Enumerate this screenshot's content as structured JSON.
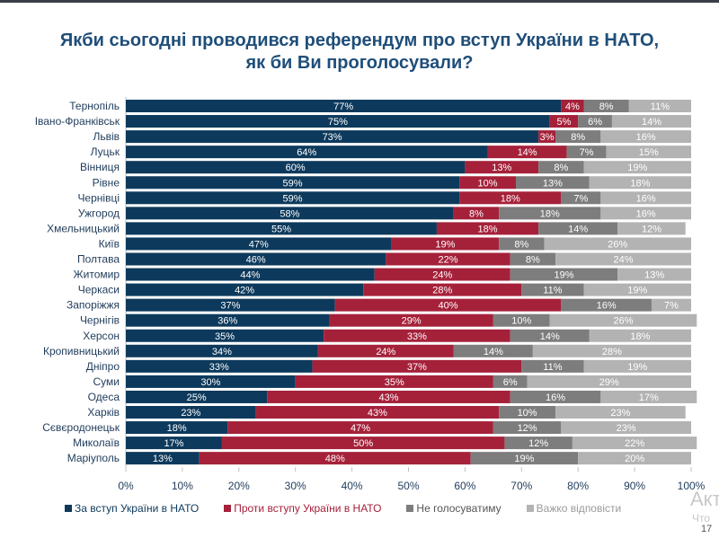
{
  "title_lines": [
    "Якби сьогодні проводився референдум про вступ України в НАТО,",
    "як би Ви проголосували?"
  ],
  "page_number": "17",
  "watermark": [
    "Акт",
    "Что"
  ],
  "chart_data": {
    "type": "bar",
    "orientation": "horizontal",
    "stacked": true,
    "title": "Якби сьогодні проводився референдум про вступ України в НАТО, як би Ви проголосували?",
    "categories": [
      "Тернопіль",
      "Івано-Франківськ",
      "Львів",
      "Луцьк",
      "Вінниця",
      "Рівне",
      "Чернівці",
      "Ужгород",
      "Хмельницький",
      "Київ",
      "Полтава",
      "Житомир",
      "Черкаси",
      "Запоріжжя",
      "Чернігів",
      "Херсон",
      "Кропивницький",
      "Дніпро",
      "Суми",
      "Одеса",
      "Харків",
      "Сєвєродонецьк",
      "Миколаїв",
      "Маріуполь"
    ],
    "series": [
      {
        "name": "За вступ України в НАТО",
        "color": "#0d3a5c",
        "text_color": "#ffffff",
        "values": [
          77,
          75,
          73,
          64,
          60,
          59,
          59,
          58,
          55,
          47,
          46,
          44,
          42,
          37,
          36,
          35,
          34,
          33,
          30,
          25,
          23,
          18,
          17,
          13
        ]
      },
      {
        "name": "Проти вступу України в НАТО",
        "color": "#a5213a",
        "text_color": "#ffffff",
        "values": [
          4,
          5,
          3,
          14,
          13,
          10,
          18,
          8,
          18,
          19,
          22,
          24,
          28,
          40,
          29,
          33,
          24,
          37,
          35,
          43,
          43,
          47,
          50,
          48
        ]
      },
      {
        "name": "Не голосуватиму",
        "color": "#7d7d7d",
        "text_color": "#ffffff",
        "values": [
          8,
          6,
          8,
          7,
          8,
          13,
          7,
          18,
          14,
          8,
          8,
          19,
          11,
          16,
          10,
          14,
          14,
          11,
          6,
          16,
          10,
          12,
          12,
          19
        ]
      },
      {
        "name": "Важко відповісти",
        "color": "#b3b3b3",
        "text_color": "#ffffff",
        "values": [
          11,
          14,
          16,
          15,
          19,
          18,
          16,
          16,
          12,
          26,
          24,
          13,
          19,
          7,
          26,
          18,
          28,
          19,
          29,
          17,
          23,
          23,
          22,
          20
        ]
      }
    ],
    "xlim": [
      0,
      100
    ],
    "xticks": [
      "0%",
      "10%",
      "20%",
      "30%",
      "40%",
      "50%",
      "60%",
      "70%",
      "80%",
      "90%",
      "100%"
    ],
    "legend_position": "bottom",
    "grid": false
  }
}
